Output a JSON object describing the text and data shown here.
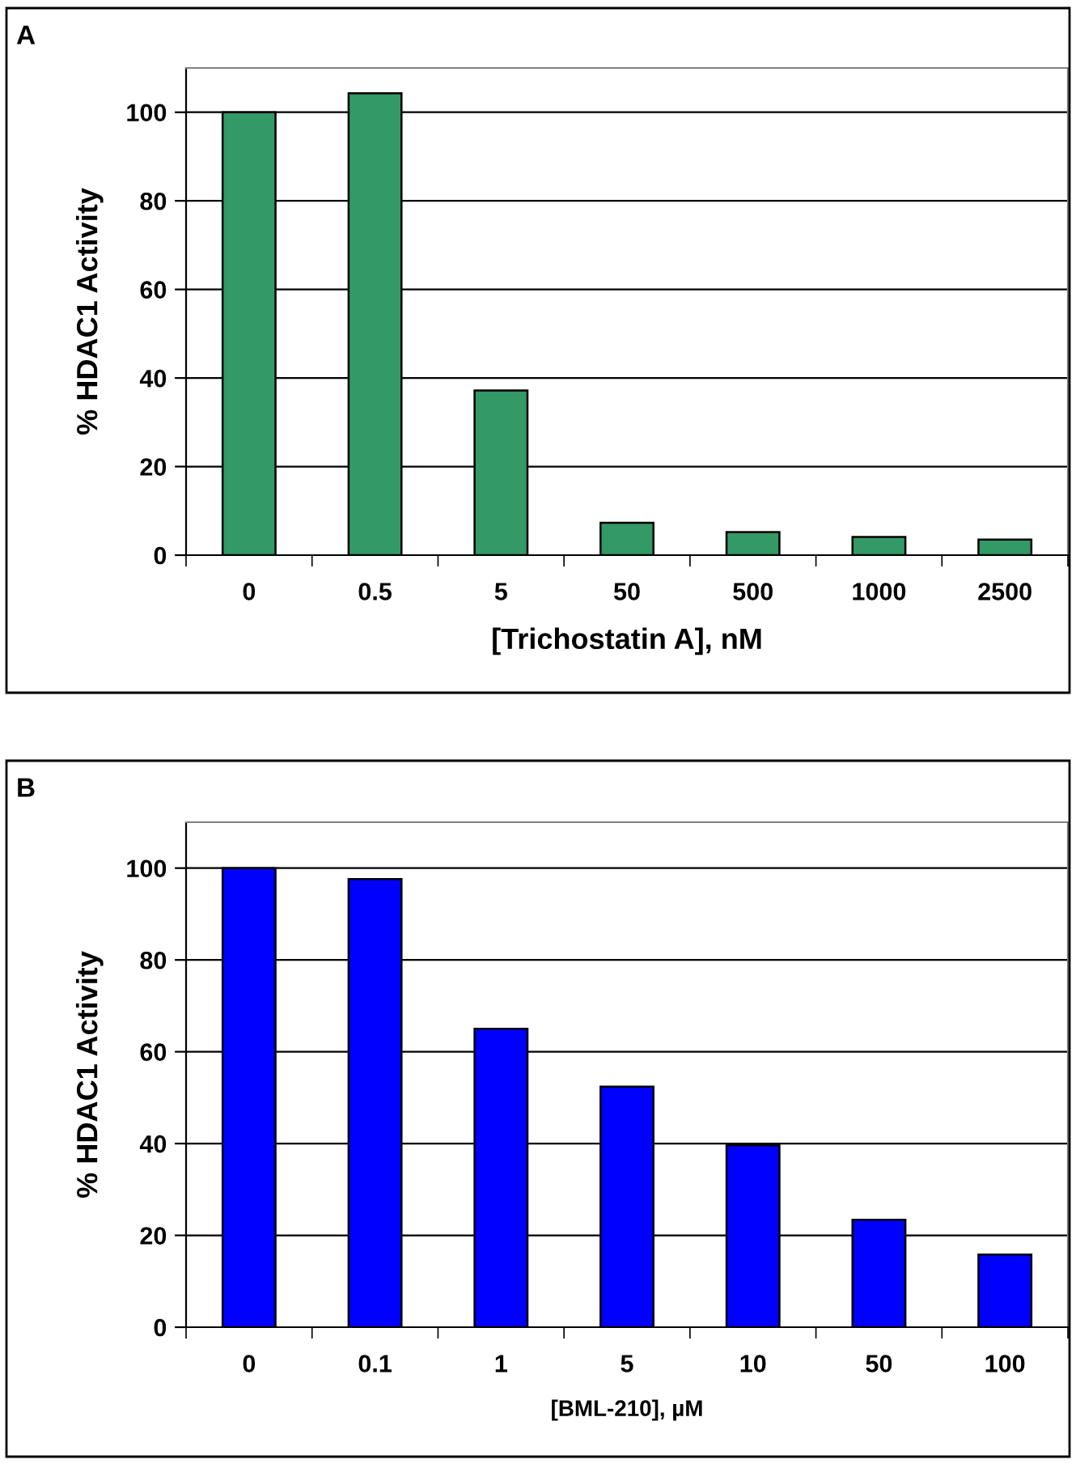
{
  "chart_data": [
    {
      "type": "bar",
      "categories": [
        "0",
        "0.5",
        "5",
        "50",
        "500",
        "1000",
        "2500"
      ],
      "values": [
        100,
        104.3,
        37.2,
        7.3,
        5.2,
        4.1,
        3.5
      ],
      "color": "#339966",
      "xlabel": "[Trichostatin A], nM",
      "ylabel": "% HDAC1 Activity",
      "ylim": [
        0,
        110
      ],
      "yticks": [
        0,
        20,
        40,
        60,
        80,
        100
      ],
      "grid": "y",
      "annotations": [
        "A"
      ]
    },
    {
      "type": "bar",
      "categories": [
        "0",
        "0.1",
        "1",
        "5",
        "10",
        "50",
        "100"
      ],
      "values": [
        100,
        97.6,
        65.0,
        52.4,
        39.6,
        23.4,
        15.8
      ],
      "color": "#0000ff",
      "xlabel": "[BML-210], µM",
      "ylabel": "% HDAC1 Activity",
      "ylim": [
        0,
        110
      ],
      "yticks": [
        0,
        20,
        40,
        60,
        80,
        100
      ],
      "grid": "y",
      "annotations": [
        "B"
      ]
    }
  ]
}
